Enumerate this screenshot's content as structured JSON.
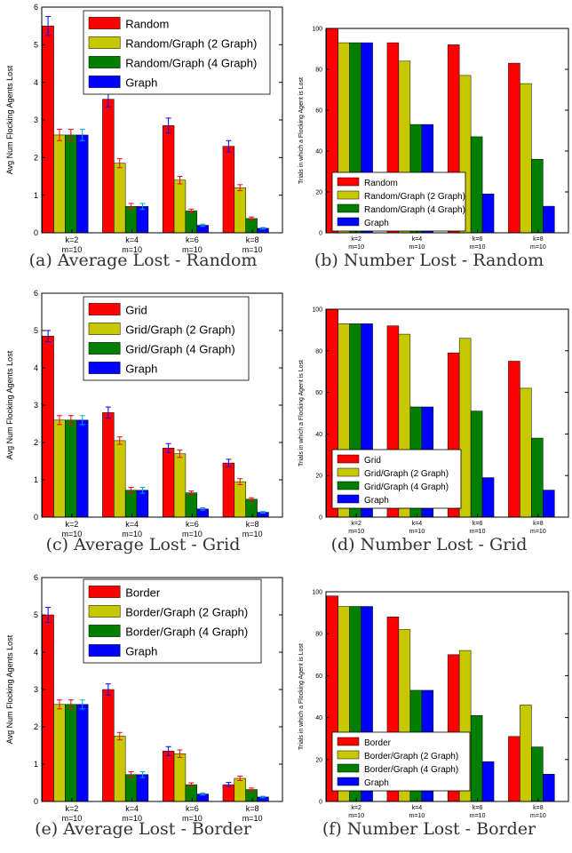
{
  "colors": {
    "red": "#ff0000",
    "yellow": "#c8c800",
    "green": "#007f00",
    "blue": "#0000ff"
  },
  "panels": [
    {
      "caption": "(a) Average Lost - Random",
      "chart_data": {
        "type": "bar",
        "ylabel": "Avg Num Flocking Agents Lost",
        "ylim": [
          0,
          6
        ],
        "yticks": [
          "0",
          "1",
          "2",
          "3",
          "4",
          "5",
          "6"
        ],
        "categories": [
          [
            "k=2",
            "m=10"
          ],
          [
            "k=4",
            "m=10"
          ],
          [
            "k=6",
            "m=10"
          ],
          [
            "k=8",
            "m=10"
          ]
        ],
        "legend_position": "top",
        "series": [
          {
            "name": "Random",
            "color": "red",
            "values": [
              5.5,
              3.55,
              2.85,
              2.3
            ],
            "errors": [
              0.25,
              0.2,
              0.2,
              0.15
            ]
          },
          {
            "name": "Random/Graph (2 Graph)",
            "color": "yellow",
            "values": [
              2.6,
              1.85,
              1.4,
              1.2
            ],
            "errors": [
              0.15,
              0.12,
              0.1,
              0.08
            ]
          },
          {
            "name": "Random/Graph (4 Graph)",
            "color": "green",
            "values": [
              2.6,
              0.7,
              0.58,
              0.38
            ],
            "errors": [
              0.15,
              0.08,
              0.05,
              0.04
            ]
          },
          {
            "name": "Graph",
            "color": "blue",
            "values": [
              2.6,
              0.7,
              0.2,
              0.12
            ],
            "errors": [
              0.15,
              0.08,
              0.03,
              0.02
            ]
          }
        ]
      }
    },
    {
      "caption": "(b) Number Lost - Random",
      "chart_data": {
        "type": "bar",
        "ylabel": "Trials in which a Flocking Agent is Lost",
        "ylim": [
          0,
          100
        ],
        "yticks": [
          "0",
          "20",
          "40",
          "60",
          "80",
          "100"
        ],
        "categories": [
          [
            "k=2",
            "m=10"
          ],
          [
            "k=4",
            "m=10"
          ],
          [
            "k=6",
            "m=10"
          ],
          [
            "k=8",
            "m=10"
          ]
        ],
        "legend_position": "bottom-left",
        "series": [
          {
            "name": "Random",
            "color": "red",
            "values": [
              100,
              93,
              92,
              83
            ]
          },
          {
            "name": "Random/Graph (2 Graph)",
            "color": "yellow",
            "values": [
              93,
              84,
              77,
              73
            ]
          },
          {
            "name": "Random/Graph (4 Graph)",
            "color": "green",
            "values": [
              93,
              53,
              47,
              36
            ]
          },
          {
            "name": "Graph",
            "color": "blue",
            "values": [
              93,
              53,
              19,
              13
            ]
          }
        ]
      }
    },
    {
      "caption": "(c) Average Lost - Grid",
      "chart_data": {
        "type": "bar",
        "ylabel": "Avg Num Flocking Agents Lost",
        "ylim": [
          0,
          6
        ],
        "yticks": [
          "0",
          "1",
          "2",
          "3",
          "4",
          "5",
          "6"
        ],
        "categories": [
          [
            "k=2",
            "m=10"
          ],
          [
            "k=4",
            "m=10"
          ],
          [
            "k=6",
            "m=10"
          ],
          [
            "k=8",
            "m=10"
          ]
        ],
        "legend_position": "top",
        "series": [
          {
            "name": "Grid",
            "color": "red",
            "values": [
              4.85,
              2.8,
              1.85,
              1.45
            ],
            "errors": [
              0.15,
              0.15,
              0.12,
              0.1
            ]
          },
          {
            "name": "Grid/Graph (2 Graph)",
            "color": "yellow",
            "values": [
              2.6,
              2.05,
              1.7,
              0.95
            ],
            "errors": [
              0.12,
              0.1,
              0.1,
              0.08
            ]
          },
          {
            "name": "Grid/Graph (4 Graph)",
            "color": "green",
            "values": [
              2.6,
              0.72,
              0.65,
              0.48
            ],
            "errors": [
              0.12,
              0.08,
              0.05,
              0.04
            ]
          },
          {
            "name": "Graph",
            "color": "blue",
            "values": [
              2.6,
              0.72,
              0.22,
              0.13
            ],
            "errors": [
              0.12,
              0.08,
              0.03,
              0.02
            ]
          }
        ]
      }
    },
    {
      "caption": "(d) Number Lost - Grid",
      "chart_data": {
        "type": "bar",
        "ylabel": "Trials in which a Flocking Agent is Lost",
        "ylim": [
          0,
          100
        ],
        "yticks": [
          "0",
          "20",
          "40",
          "60",
          "80",
          "100"
        ],
        "categories": [
          [
            "k=2",
            "m=10"
          ],
          [
            "k=4",
            "m=10"
          ],
          [
            "k=6",
            "m=10"
          ],
          [
            "k=8",
            "m=10"
          ]
        ],
        "legend_position": "bottom-left",
        "series": [
          {
            "name": "Grid",
            "color": "red",
            "values": [
              100,
              92,
              79,
              75
            ]
          },
          {
            "name": "Grid/Graph (2 Graph)",
            "color": "yellow",
            "values": [
              93,
              88,
              86,
              62
            ]
          },
          {
            "name": "Grid/Graph (4 Graph)",
            "color": "green",
            "values": [
              93,
              53,
              51,
              38
            ]
          },
          {
            "name": "Graph",
            "color": "blue",
            "values": [
              93,
              53,
              19,
              13
            ]
          }
        ]
      }
    },
    {
      "caption": "(e) Average Lost - Border",
      "chart_data": {
        "type": "bar",
        "ylabel": "Avg Num Flocking Agents Lost",
        "ylim": [
          0,
          6
        ],
        "yticks": [
          "0",
          "1",
          "2",
          "3",
          "4",
          "5",
          "6"
        ],
        "categories": [
          [
            "k=2",
            "m=10"
          ],
          [
            "k=4",
            "m=10"
          ],
          [
            "k=6",
            "m=10"
          ],
          [
            "k=8",
            "m=10"
          ]
        ],
        "legend_position": "top",
        "series": [
          {
            "name": "Border",
            "color": "red",
            "values": [
              5.0,
              3.0,
              1.35,
              0.45
            ],
            "errors": [
              0.2,
              0.15,
              0.12,
              0.06
            ]
          },
          {
            "name": "Border/Graph (2 Graph)",
            "color": "yellow",
            "values": [
              2.6,
              1.75,
              1.28,
              0.62
            ],
            "errors": [
              0.12,
              0.1,
              0.1,
              0.06
            ]
          },
          {
            "name": "Border/Graph (4 Graph)",
            "color": "green",
            "values": [
              2.6,
              0.72,
              0.45,
              0.32
            ],
            "errors": [
              0.12,
              0.08,
              0.05,
              0.04
            ]
          },
          {
            "name": "Graph",
            "color": "blue",
            "values": [
              2.6,
              0.72,
              0.2,
              0.12
            ],
            "errors": [
              0.12,
              0.08,
              0.03,
              0.02
            ]
          }
        ]
      }
    },
    {
      "caption": "(f) Number Lost - Border",
      "chart_data": {
        "type": "bar",
        "ylabel": "Trials in which a Flocking Agent is Lost",
        "ylim": [
          0,
          100
        ],
        "yticks": [
          "0",
          "20",
          "40",
          "60",
          "80",
          "100"
        ],
        "categories": [
          [
            "k=2",
            "m=10"
          ],
          [
            "k=4",
            "m=10"
          ],
          [
            "k=6",
            "m=10"
          ],
          [
            "k=8",
            "m=10"
          ]
        ],
        "legend_position": "bottom-left",
        "series": [
          {
            "name": "Border",
            "color": "red",
            "values": [
              98,
              88,
              70,
              31
            ]
          },
          {
            "name": "Border/Graph (2 Graph)",
            "color": "yellow",
            "values": [
              93,
              82,
              72,
              46
            ]
          },
          {
            "name": "Border/Graph (4 Graph)",
            "color": "green",
            "values": [
              93,
              53,
              41,
              26
            ]
          },
          {
            "name": "Graph",
            "color": "blue",
            "values": [
              93,
              53,
              19,
              13
            ]
          }
        ]
      }
    }
  ]
}
